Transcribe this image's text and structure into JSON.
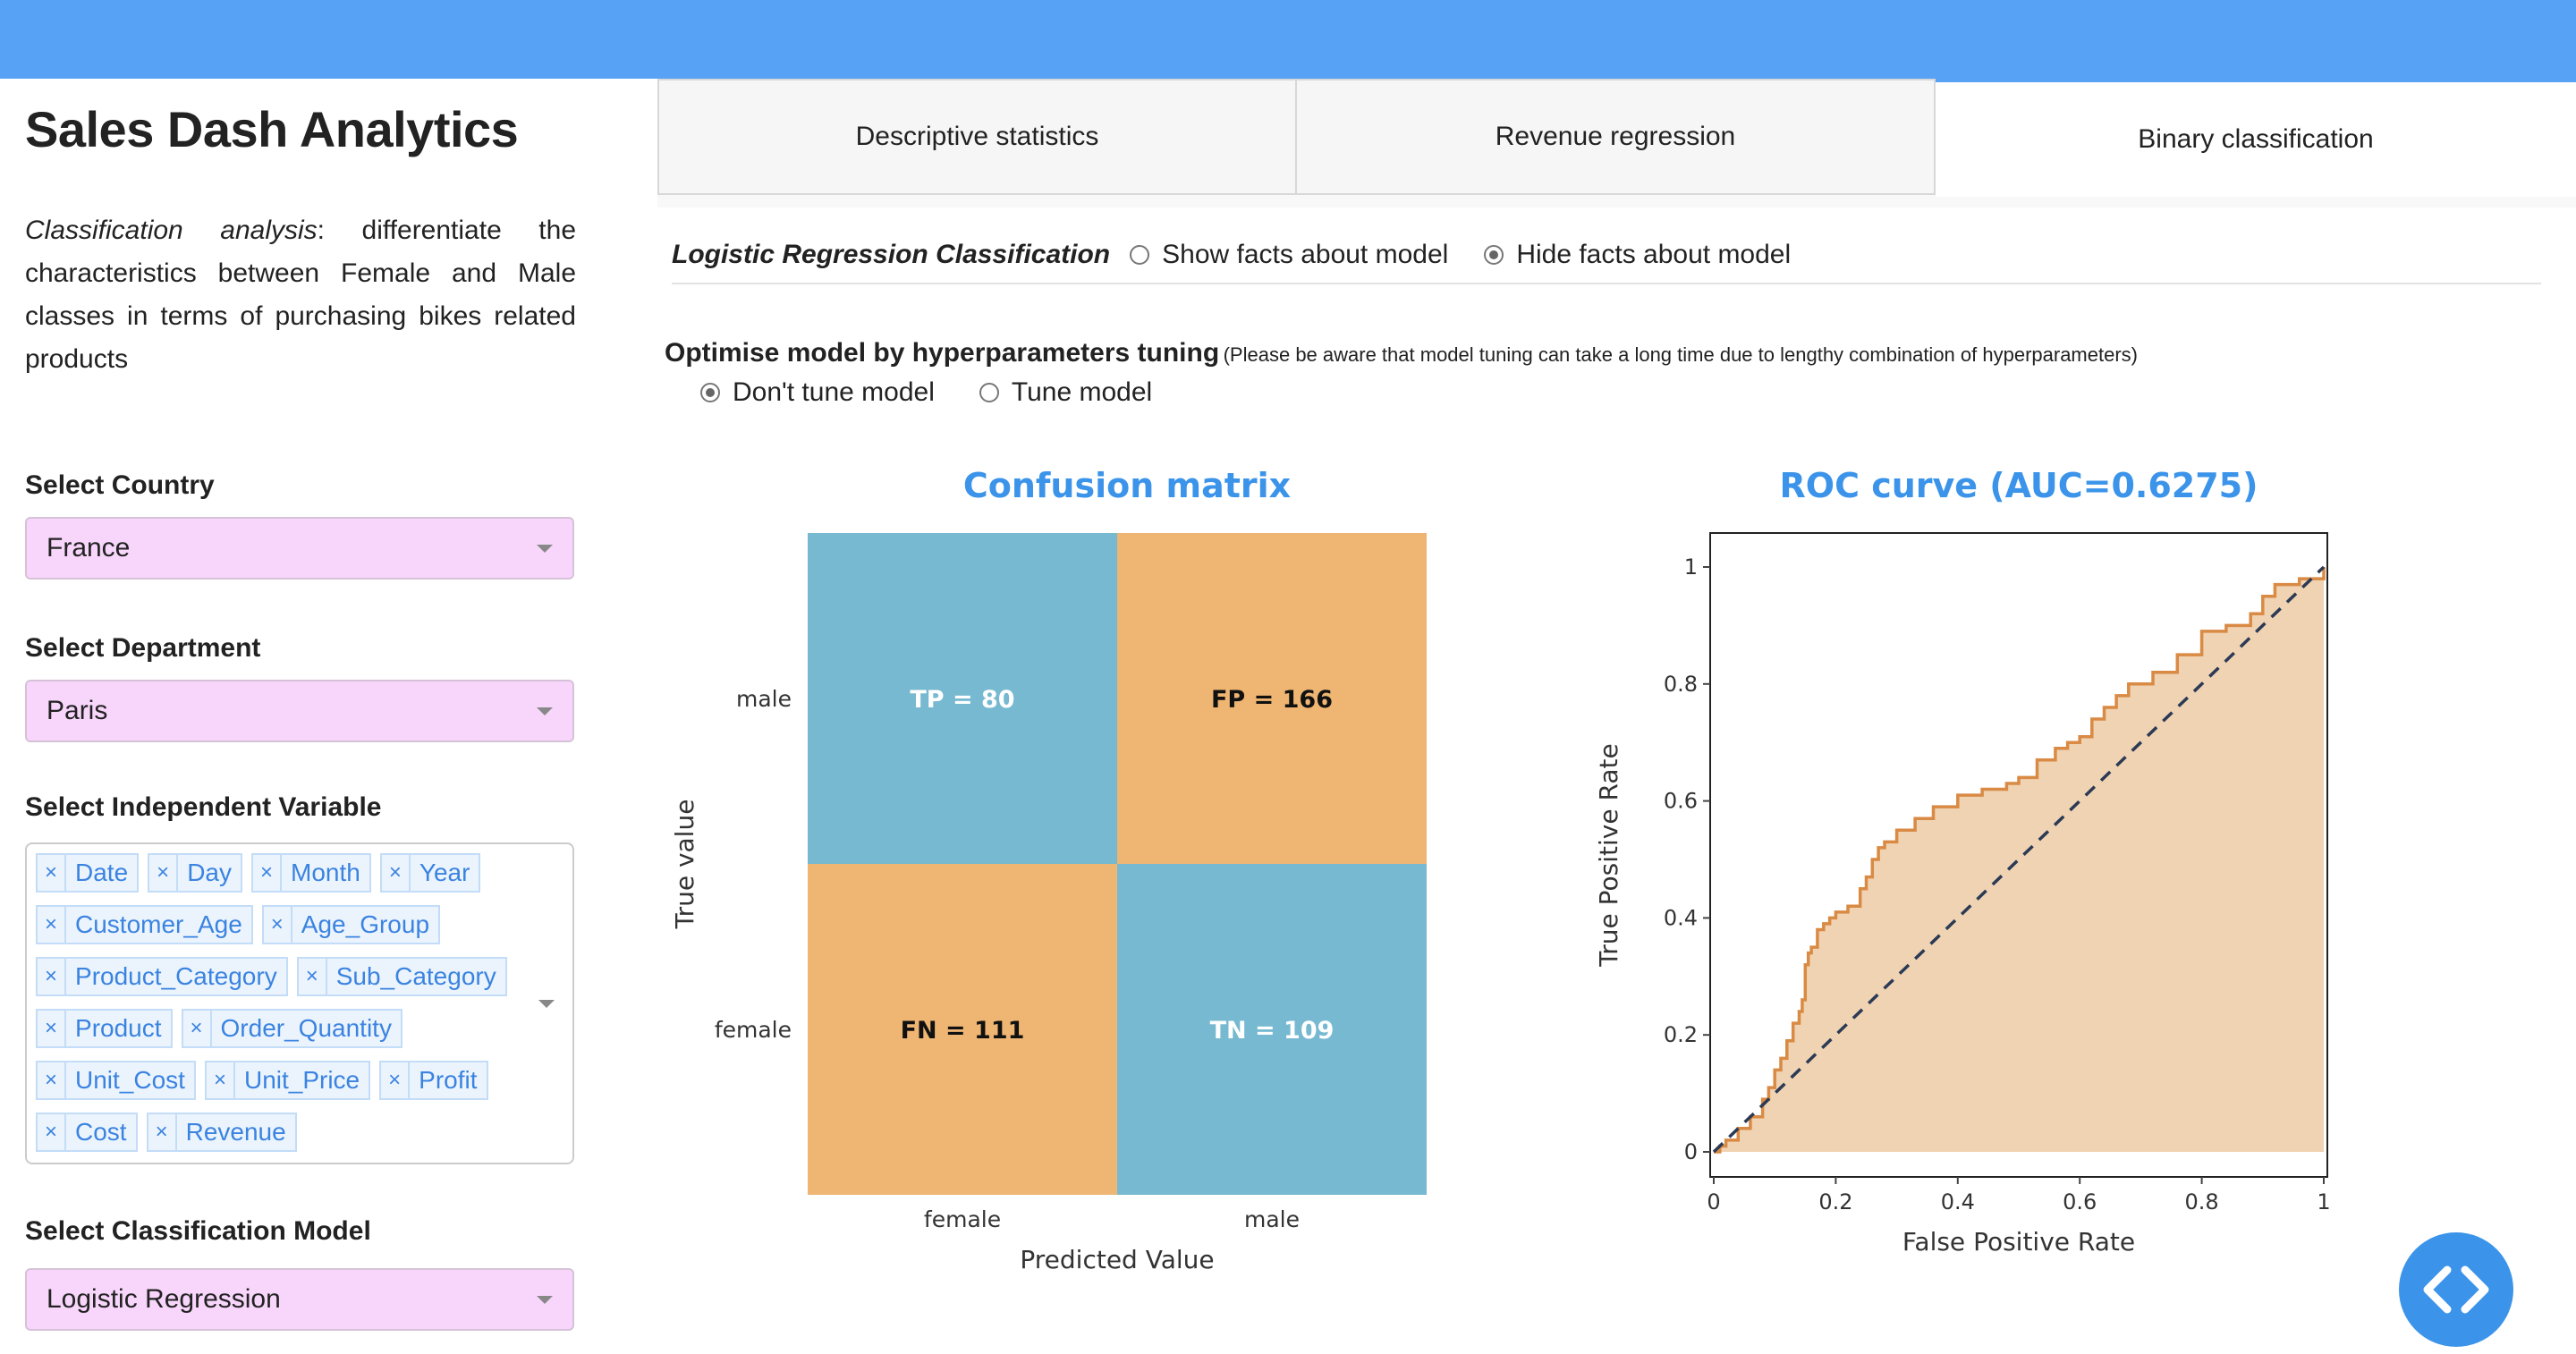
{
  "app": {
    "title": "Sales Dash Analytics",
    "description_lead": "Classification analysis",
    "description_rest": ": differentiate the characteristics between Female and Male classes in terms of purchasing bikes related products"
  },
  "sidebar": {
    "country": {
      "label": "Select Country",
      "value": "France"
    },
    "department": {
      "label": "Select Department",
      "value": "Paris"
    },
    "independent": {
      "label": "Select Independent Variable",
      "remove_glyph": "×",
      "chips": [
        "Date",
        "Day",
        "Month",
        "Year",
        "Customer_Age",
        "Age_Group",
        "Product_Category",
        "Sub_Category",
        "Product",
        "Order_Quantity",
        "Unit_Cost",
        "Unit_Price",
        "Profit",
        "Cost",
        "Revenue"
      ]
    },
    "model": {
      "label": "Select Classification Model",
      "value": "Logistic Regression"
    }
  },
  "tabs": [
    "Descriptive statistics",
    "Revenue regression",
    "Binary classification"
  ],
  "active_tab": 2,
  "panel": {
    "model_name": "Logistic Regression Classification",
    "facts_options": [
      "Show facts about model",
      "Hide facts about model"
    ],
    "facts_selected": 1,
    "tune_title": "Optimise model by hyperparameters tuning",
    "tune_note": "(Please be aware that model tuning can take a long time due to lengthy combination of hyperparameters)",
    "tune_options": [
      "Don't tune model",
      "Tune model"
    ],
    "tune_selected": 0
  },
  "chart_data": [
    {
      "type": "heatmap",
      "title": "Confusion matrix",
      "xlabel": "Predicted Value",
      "ylabel": "True value",
      "x_categories": [
        "female",
        "male"
      ],
      "y_categories": [
        "male",
        "female"
      ],
      "cells": [
        {
          "row": 0,
          "col": 0,
          "label": "TP = 80",
          "value": 80,
          "color": "#76b9d0",
          "text_color": "#ffffff"
        },
        {
          "row": 0,
          "col": 1,
          "label": "FP = 166",
          "value": 166,
          "color": "#efb572",
          "text_color": "#111111"
        },
        {
          "row": 1,
          "col": 0,
          "label": "FN = 111",
          "value": 111,
          "color": "#efb572",
          "text_color": "#111111"
        },
        {
          "row": 1,
          "col": 1,
          "label": "TN = 109",
          "value": 109,
          "color": "#76b9d0",
          "text_color": "#ffffff"
        }
      ],
      "title_color": "#3b94ea"
    },
    {
      "type": "area",
      "title": "ROC curve (AUC=0.6275)",
      "xlabel": "False Positive Rate",
      "ylabel": "True Positive Rate",
      "xlim": [
        0,
        1
      ],
      "ylim": [
        0,
        1
      ],
      "xticks": [
        0,
        0.2,
        0.4,
        0.6,
        0.8,
        1
      ],
      "yticks": [
        0,
        0.2,
        0.4,
        0.6,
        0.8,
        1
      ],
      "xtick_labels": [
        "0",
        "0.2",
        "0.4",
        "0.6",
        "0.8",
        "1"
      ],
      "ytick_labels": [
        "0",
        "0.2",
        "0.4",
        "0.6",
        "0.8",
        "1"
      ],
      "series": [
        {
          "x": [
            0,
            0.01,
            0.02,
            0.04,
            0.06,
            0.08,
            0.09,
            0.1,
            0.11,
            0.12,
            0.13,
            0.14,
            0.145,
            0.15,
            0.155,
            0.16,
            0.17,
            0.18,
            0.19,
            0.2,
            0.22,
            0.24,
            0.25,
            0.26,
            0.27,
            0.28,
            0.3,
            0.33,
            0.36,
            0.4,
            0.44,
            0.48,
            0.5,
            0.53,
            0.56,
            0.58,
            0.6,
            0.62,
            0.64,
            0.66,
            0.68,
            0.72,
            0.76,
            0.8,
            0.84,
            0.88,
            0.9,
            0.92,
            0.96,
            1
          ],
          "y": [
            0,
            0.01,
            0.02,
            0.04,
            0.06,
            0.09,
            0.11,
            0.14,
            0.16,
            0.19,
            0.22,
            0.24,
            0.26,
            0.32,
            0.34,
            0.35,
            0.38,
            0.39,
            0.4,
            0.41,
            0.42,
            0.45,
            0.47,
            0.5,
            0.52,
            0.53,
            0.55,
            0.57,
            0.59,
            0.61,
            0.62,
            0.63,
            0.64,
            0.67,
            0.69,
            0.7,
            0.71,
            0.74,
            0.76,
            0.78,
            0.8,
            0.82,
            0.85,
            0.89,
            0.9,
            0.92,
            0.95,
            0.97,
            0.98,
            1
          ],
          "line_color": "#d98a44",
          "fill_color": "#f0d3b2"
        }
      ],
      "reference_line": {
        "x": [
          0,
          1
        ],
        "y": [
          0,
          1
        ],
        "dash": true,
        "color": "#2b3a55"
      },
      "title_color": "#3b94ea"
    }
  ]
}
